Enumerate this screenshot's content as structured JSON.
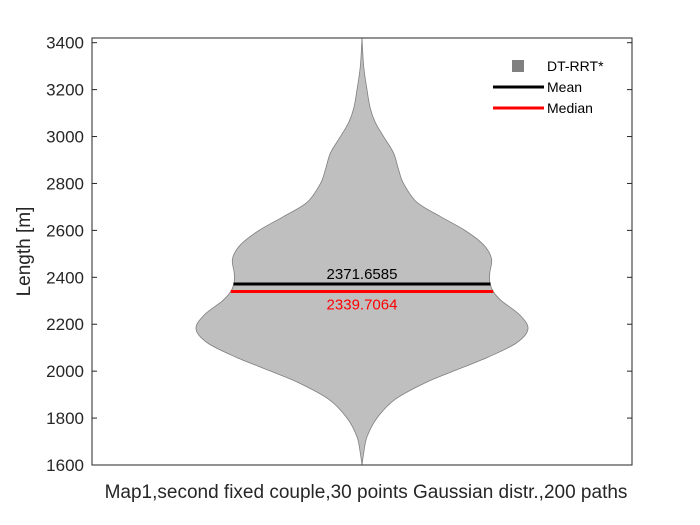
{
  "chart_data": {
    "type": "violin",
    "xlabel": "Map1,second fixed couple,30 points Gaussian distr.,200 paths",
    "ylabel": "Length [m]",
    "ylim": [
      1600,
      3420
    ],
    "yticks": [
      1600,
      1800,
      2000,
      2200,
      2400,
      2600,
      2800,
      3000,
      3200,
      3400
    ],
    "grid": false,
    "legend_position": "top-right",
    "series": [
      {
        "name": "DT-RRT*",
        "color": "#bfbfbf",
        "outline_color": "#7f7f7f",
        "mean": 2371.6585,
        "median": 2339.7064,
        "mean_label": "2371.6585",
        "median_label": "2339.7064",
        "density_profile": [
          {
            "y": 1600,
            "w": 0.0
          },
          {
            "y": 1650,
            "w": 0.01
          },
          {
            "y": 1720,
            "w": 0.03
          },
          {
            "y": 1800,
            "w": 0.09
          },
          {
            "y": 1880,
            "w": 0.2
          },
          {
            "y": 1950,
            "w": 0.38
          },
          {
            "y": 2000,
            "w": 0.55
          },
          {
            "y": 2060,
            "w": 0.76
          },
          {
            "y": 2120,
            "w": 0.93
          },
          {
            "y": 2180,
            "w": 1.0
          },
          {
            "y": 2240,
            "w": 0.95
          },
          {
            "y": 2300,
            "w": 0.84
          },
          {
            "y": 2340,
            "w": 0.79
          },
          {
            "y": 2380,
            "w": 0.77
          },
          {
            "y": 2420,
            "w": 0.77
          },
          {
            "y": 2480,
            "w": 0.78
          },
          {
            "y": 2540,
            "w": 0.73
          },
          {
            "y": 2600,
            "w": 0.62
          },
          {
            "y": 2660,
            "w": 0.47
          },
          {
            "y": 2720,
            "w": 0.33
          },
          {
            "y": 2800,
            "w": 0.25
          },
          {
            "y": 2860,
            "w": 0.22
          },
          {
            "y": 2930,
            "w": 0.19
          },
          {
            "y": 3000,
            "w": 0.13
          },
          {
            "y": 3060,
            "w": 0.08
          },
          {
            "y": 3120,
            "w": 0.05
          },
          {
            "y": 3200,
            "w": 0.03
          },
          {
            "y": 3300,
            "w": 0.01
          },
          {
            "y": 3420,
            "w": 0.0
          }
        ]
      }
    ],
    "legend": [
      {
        "label": "DT-RRT*",
        "kind": "marker",
        "color": "#808080"
      },
      {
        "label": "Mean",
        "kind": "line",
        "color": "#000000"
      },
      {
        "label": "Median",
        "kind": "line",
        "color": "#ff0000"
      }
    ],
    "mean_color": "#000000",
    "median_color": "#ff0000"
  }
}
